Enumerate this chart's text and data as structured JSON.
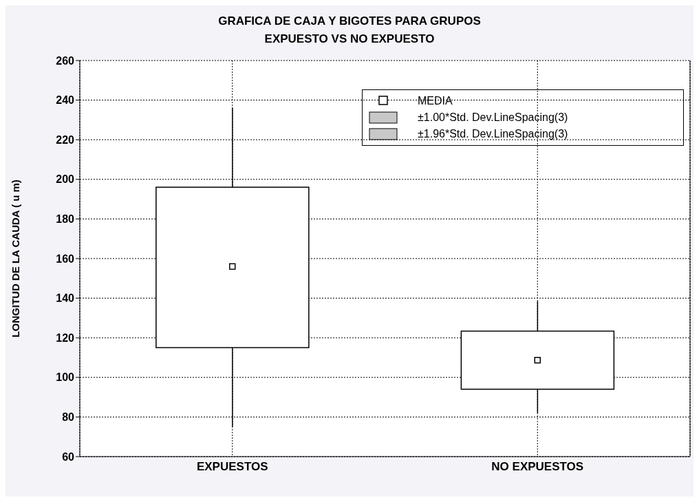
{
  "chart_data": {
    "type": "box",
    "title": "GRAFICA DE CAJA Y BIGOTES  PARA GRUPOS\nEXPUESTO VS NO EXPUESTO",
    "ylabel": "LONGITUD DE LA CAUDA ( u m)",
    "categories": [
      "EXPUESTOS",
      "NO EXPUESTOS"
    ],
    "series": [
      {
        "name": "MEDIA",
        "color": "#ffffff",
        "boxes": [
          {
            "low": 75,
            "q1": 115,
            "median": 156,
            "q3": 196,
            "high": 236
          },
          {
            "low": 82,
            "q1": 94,
            "median": 108.7,
            "q3": 123.4,
            "high": 138.5
          }
        ]
      }
    ],
    "annotations": [
      "±1.00*Std. Dev.LineSpacing(3)",
      "±1.96*Std. Dev.LineSpacing(3)"
    ],
    "ylim": [
      60,
      260
    ],
    "yticks": [
      60,
      80,
      100,
      120,
      140,
      160,
      180,
      200,
      220,
      240,
      260
    ],
    "grid": true,
    "legend": "top right",
    "marker": "square"
  }
}
